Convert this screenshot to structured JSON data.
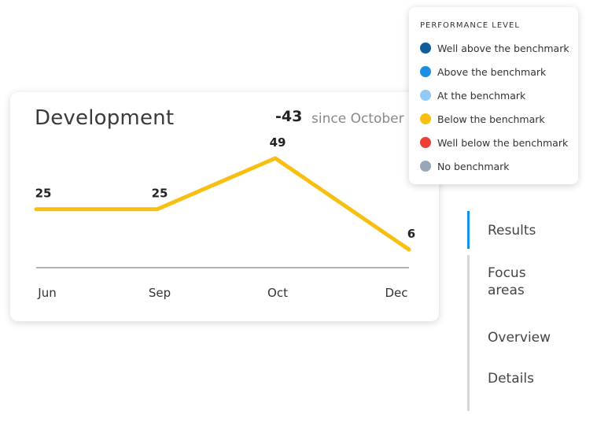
{
  "card": {
    "title": "Development",
    "delta": "-43",
    "since": "since October"
  },
  "chart_data": {
    "type": "line",
    "categories": [
      "Jun",
      "Sep",
      "Oct",
      "Dec"
    ],
    "values": [
      25,
      25,
      49,
      6
    ],
    "data_labels": [
      "25",
      "25",
      "49",
      "6"
    ],
    "line_color": "#f8bf12",
    "axis_color": "#9a9a9a",
    "xlabel": "",
    "ylabel": ""
  },
  "legend": {
    "title": "PERFORMANCE LEVEL",
    "items": [
      {
        "label": "Well above the benchmark",
        "color": "#0e5d9a"
      },
      {
        "label": "Above the benchmark",
        "color": "#1a8fe3"
      },
      {
        "label": "At the benchmark",
        "color": "#93c9f5"
      },
      {
        "label": "Below the benchmark",
        "color": "#f8bf12"
      },
      {
        "label": "Well below the benchmark",
        "color": "#ee3f35"
      },
      {
        "label": "No benchmark",
        "color": "#98a6b7"
      }
    ]
  },
  "nav": {
    "items": [
      {
        "label": "Results",
        "active": true
      },
      {
        "label": "Focus areas",
        "active": false
      },
      {
        "label": "Overview",
        "active": false
      },
      {
        "label": "Details",
        "active": false
      }
    ],
    "active_color": "#1a8fe3"
  }
}
